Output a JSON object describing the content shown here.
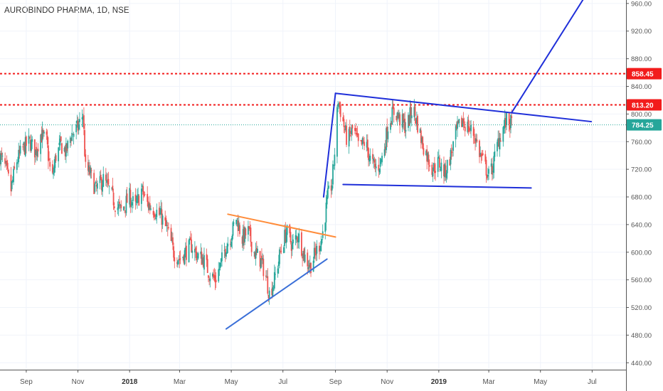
{
  "chart_data": {
    "type": "candlestick",
    "title": "AUROBINDO PHARMA, 1D, NSE",
    "ylim": [
      430,
      965
    ],
    "y_ticks": [
      440,
      480,
      520,
      560,
      600,
      640,
      680,
      720,
      760,
      800,
      840,
      880,
      920,
      960
    ],
    "y_tick_labels": [
      "440.00",
      "480.00",
      "520.00",
      "560.00",
      "600.00",
      "640.00",
      "680.00",
      "720.00",
      "760.00",
      "800.00",
      "840.00",
      "880.00",
      "920.00",
      "960.00"
    ],
    "x_range": [
      "2017-08-01",
      "2019-08-10"
    ],
    "x_ticks": [
      {
        "date": "2017-09-01",
        "label": "Sep",
        "bold": false
      },
      {
        "date": "2017-11-01",
        "label": "Nov",
        "bold": false
      },
      {
        "date": "2018-01-01",
        "label": "2018",
        "bold": true
      },
      {
        "date": "2018-03-01",
        "label": "Mar",
        "bold": false
      },
      {
        "date": "2018-05-01",
        "label": "May",
        "bold": false
      },
      {
        "date": "2018-07-01",
        "label": "Jul",
        "bold": false
      },
      {
        "date": "2018-09-01",
        "label": "Sep",
        "bold": false
      },
      {
        "date": "2018-11-01",
        "label": "Nov",
        "bold": false
      },
      {
        "date": "2019-01-01",
        "label": "2019",
        "bold": true
      },
      {
        "date": "2019-03-01",
        "label": "Mar",
        "bold": false
      },
      {
        "date": "2019-05-01",
        "label": "May",
        "bold": false
      },
      {
        "date": "2019-07-01",
        "label": "Jul",
        "bold": false
      }
    ],
    "price_path": [
      [
        "2017-08-01",
        740
      ],
      [
        "2017-08-08",
        720
      ],
      [
        "2017-08-14",
        690
      ],
      [
        "2017-08-20",
        730
      ],
      [
        "2017-08-28",
        750
      ],
      [
        "2017-09-05",
        760
      ],
      [
        "2017-09-12",
        745
      ],
      [
        "2017-09-18",
        770
      ],
      [
        "2017-09-25",
        760
      ],
      [
        "2017-10-01",
        700
      ],
      [
        "2017-10-06",
        740
      ],
      [
        "2017-10-12",
        755
      ],
      [
        "2017-10-18",
        745
      ],
      [
        "2017-10-24",
        770
      ],
      [
        "2017-11-01",
        780
      ],
      [
        "2017-11-07",
        800
      ],
      [
        "2017-11-10",
        720
      ],
      [
        "2017-11-15",
        715
      ],
      [
        "2017-11-22",
        690
      ],
      [
        "2017-12-01",
        705
      ],
      [
        "2017-12-08",
        690
      ],
      [
        "2017-12-15",
        670
      ],
      [
        "2017-12-22",
        660
      ],
      [
        "2018-01-01",
        680
      ],
      [
        "2018-01-08",
        665
      ],
      [
        "2018-01-15",
        690
      ],
      [
        "2018-01-22",
        670
      ],
      [
        "2018-02-01",
        660
      ],
      [
        "2018-02-08",
        650
      ],
      [
        "2018-02-15",
        630
      ],
      [
        "2018-02-22",
        600
      ],
      [
        "2018-03-01",
        590
      ],
      [
        "2018-03-08",
        600
      ],
      [
        "2018-03-15",
        610
      ],
      [
        "2018-03-22",
        595
      ],
      [
        "2018-03-29",
        590
      ],
      [
        "2018-04-05",
        570
      ],
      [
        "2018-04-12",
        560
      ],
      [
        "2018-04-18",
        580
      ],
      [
        "2018-04-25",
        610
      ],
      [
        "2018-05-01",
        625
      ],
      [
        "2018-05-07",
        650
      ],
      [
        "2018-05-14",
        620
      ],
      [
        "2018-05-21",
        630
      ],
      [
        "2018-05-28",
        600
      ],
      [
        "2018-06-04",
        590
      ],
      [
        "2018-06-10",
        570
      ],
      [
        "2018-06-15",
        540
      ],
      [
        "2018-06-21",
        560
      ],
      [
        "2018-06-28",
        600
      ],
      [
        "2018-07-05",
        630
      ],
      [
        "2018-07-12",
        610
      ],
      [
        "2018-07-19",
        625
      ],
      [
        "2018-07-26",
        595
      ],
      [
        "2018-08-02",
        580
      ],
      [
        "2018-08-09",
        600
      ],
      [
        "2018-08-16",
        620
      ],
      [
        "2018-08-23",
        680
      ],
      [
        "2018-08-28",
        700
      ],
      [
        "2018-09-01",
        760
      ],
      [
        "2018-09-04",
        820
      ],
      [
        "2018-09-08",
        800
      ],
      [
        "2018-09-15",
        760
      ],
      [
        "2018-09-22",
        780
      ],
      [
        "2018-09-29",
        750
      ],
      [
        "2018-10-06",
        760
      ],
      [
        "2018-10-13",
        730
      ],
      [
        "2018-10-20",
        720
      ],
      [
        "2018-10-27",
        740
      ],
      [
        "2018-11-03",
        790
      ],
      [
        "2018-11-10",
        805
      ],
      [
        "2018-11-17",
        790
      ],
      [
        "2018-11-24",
        780
      ],
      [
        "2018-12-01",
        810
      ],
      [
        "2018-12-06",
        790
      ],
      [
        "2018-12-12",
        760
      ],
      [
        "2018-12-18",
        740
      ],
      [
        "2018-12-25",
        720
      ],
      [
        "2019-01-01",
        730
      ],
      [
        "2019-01-08",
        715
      ],
      [
        "2019-01-15",
        740
      ],
      [
        "2019-01-22",
        775
      ],
      [
        "2019-01-29",
        790
      ],
      [
        "2019-02-05",
        780
      ],
      [
        "2019-02-12",
        770
      ],
      [
        "2019-02-19",
        740
      ],
      [
        "2019-02-26",
        720
      ],
      [
        "2019-03-01",
        710
      ],
      [
        "2019-03-06",
        725
      ],
      [
        "2019-03-12",
        760
      ],
      [
        "2019-03-18",
        780
      ],
      [
        "2019-03-22",
        790
      ],
      [
        "2019-03-28",
        785
      ]
    ],
    "levels": [
      {
        "value": 858.45,
        "label": "858.45",
        "style": "dotted",
        "color": "#f21c1c"
      },
      {
        "value": 813.2,
        "label": "813.20",
        "style": "dotted",
        "color": "#f21c1c"
      },
      {
        "value": 784.25,
        "label": "784.25",
        "style": "dotted",
        "color": "#26a69a"
      }
    ],
    "trendlines": [
      {
        "from": [
          "2018-04-25",
          489
        ],
        "to": [
          "2018-08-22",
          590
        ],
        "color": "#3a6fd8"
      },
      {
        "from": [
          "2018-04-27",
          655
        ],
        "to": [
          "2018-09-01",
          622
        ],
        "color": "#ff8c3a"
      },
      {
        "from": [
          "2018-08-18",
          680
        ],
        "to": [
          "2018-09-01",
          830
        ],
        "color": "#1f2fd9"
      },
      {
        "from": [
          "2018-09-01",
          830
        ],
        "to": [
          "2019-06-30",
          789
        ],
        "color": "#1f2fd9"
      },
      {
        "from": [
          "2018-09-10",
          698
        ],
        "to": [
          "2019-04-20",
          693
        ],
        "color": "#1f2fd9"
      },
      {
        "from": [
          "2019-03-28",
          802
        ],
        "to": [
          "2019-06-20",
          965
        ],
        "color": "#1f2fd9"
      }
    ],
    "colors": {
      "up": "#26a69a",
      "down": "#ef5350",
      "grid": "#f0f3fa"
    }
  }
}
